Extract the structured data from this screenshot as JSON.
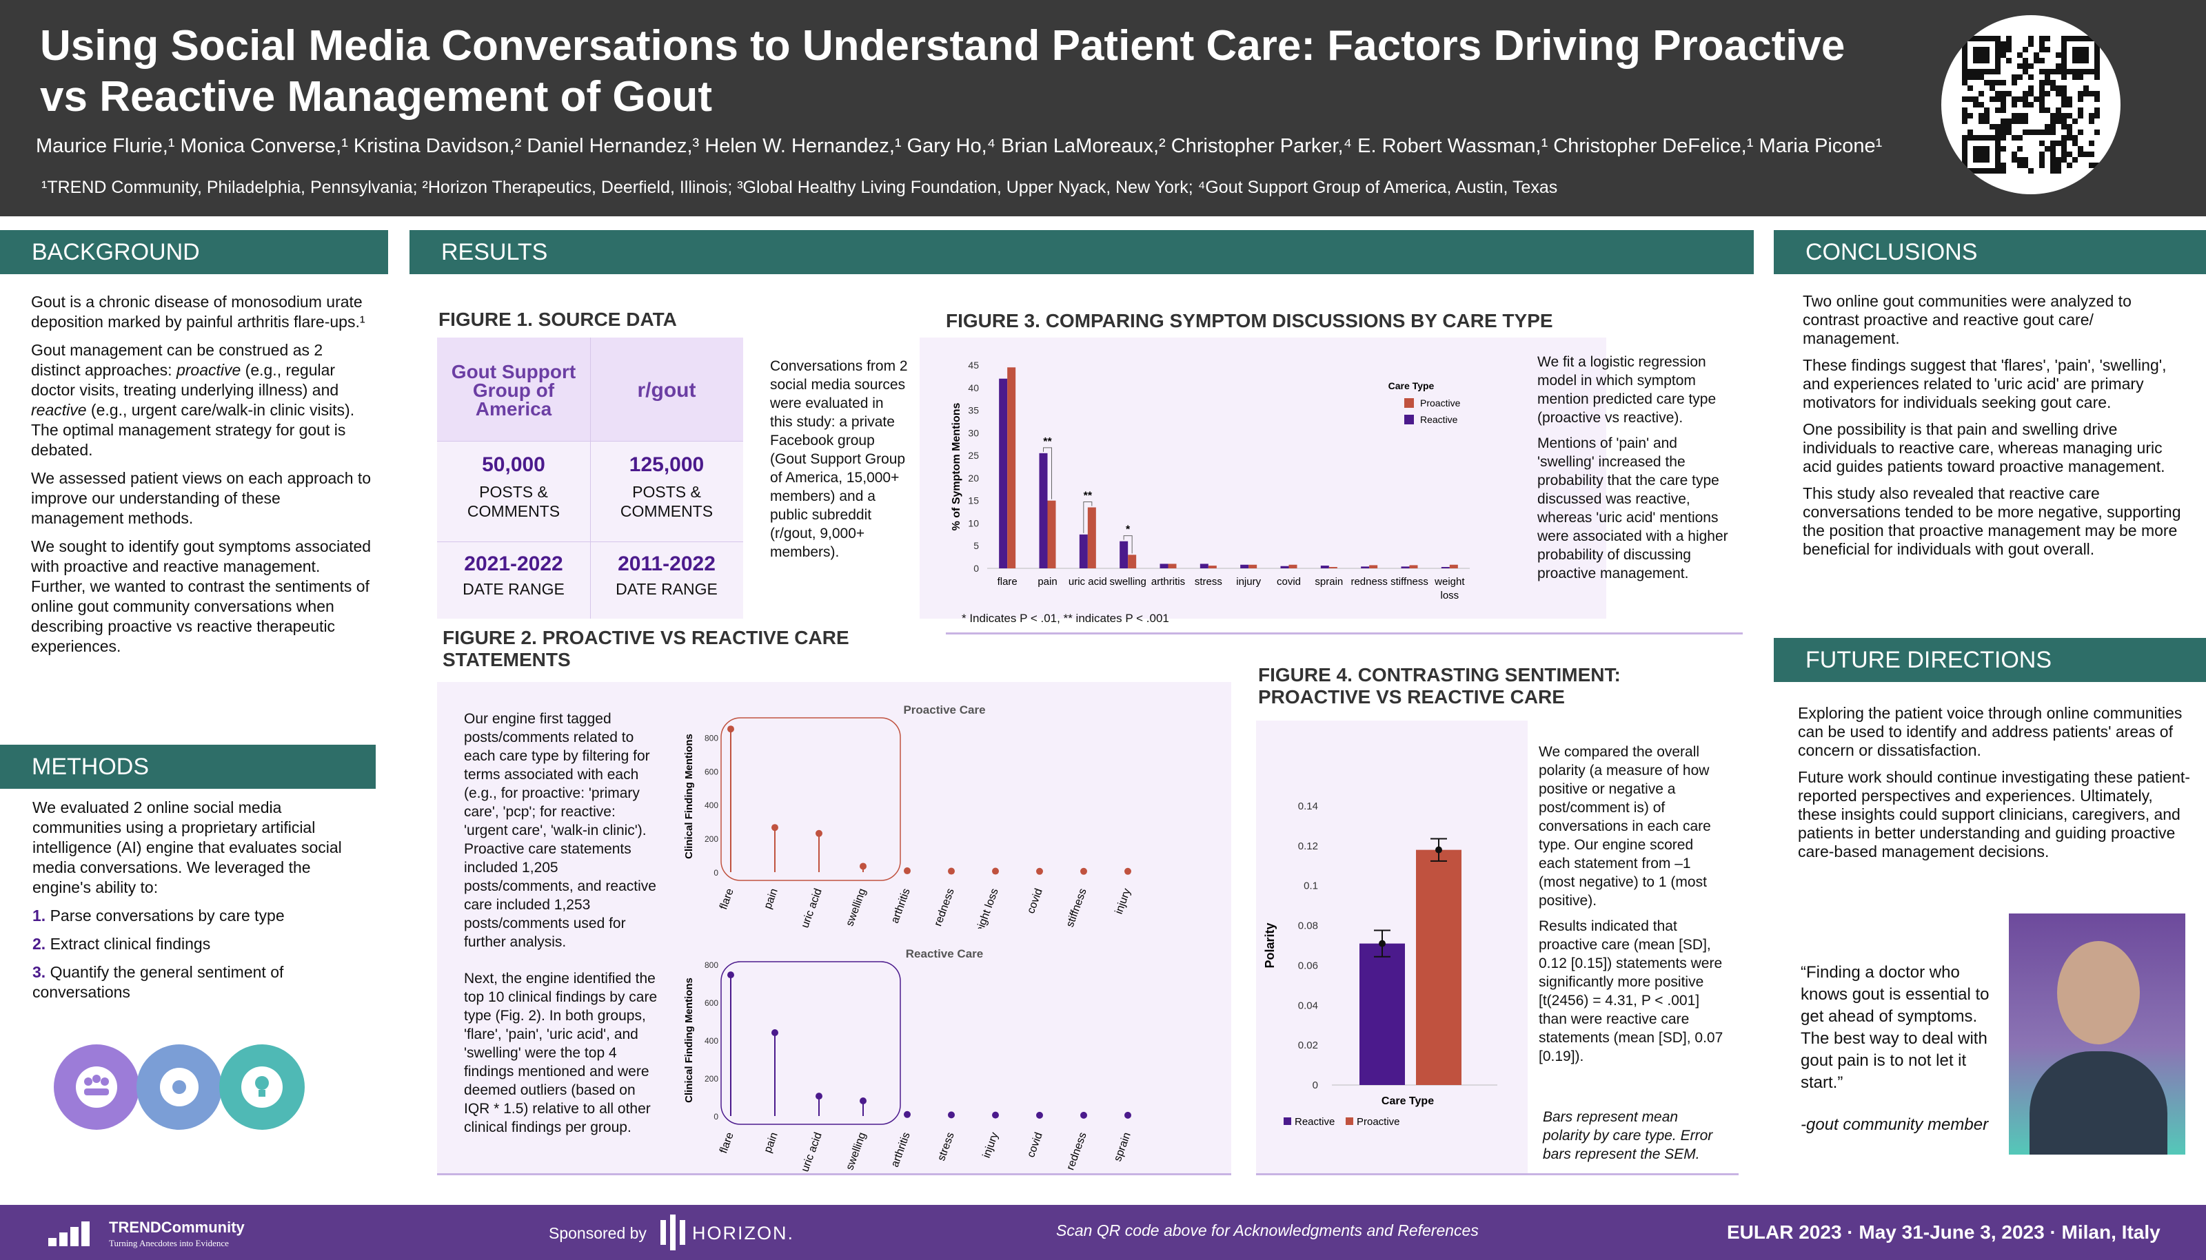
{
  "header": {
    "title_line1": "Using Social Media Conversations to Understand Patient Care: Factors Driving Proactive",
    "title_line2": "vs Reactive Management of Gout",
    "authors": "Maurice Flurie,¹ Monica Converse,¹ Kristina Davidson,² Daniel Hernandez,³ Helen W. Hernandez,¹ Gary Ho,⁴ Brian LaMoreaux,² Christopher Parker,⁴ E. Robert Wassman,¹ Christopher DeFelice,¹ Maria Picone¹",
    "affiliations": "¹TREND Community, Philadelphia, Pennsylvania; ²Horizon Therapeutics, Deerfield, Illinois; ³Global Healthy Living Foundation, Upper Nyack, New York; ⁴Gout Support Group of America, Austin, Texas"
  },
  "background": {
    "heading": "BACKGROUND",
    "p1": "Gout is a chronic disease of monosodium urate deposition marked by painful arthritis flare-ups.¹",
    "p2a": "Gout management can be construed as 2 distinct approaches: ",
    "p2b": "proactive",
    "p2c": " (e.g., regular doctor visits, treating underlying illness) and ",
    "p2d": "reactive",
    "p2e": " (e.g., urgent care/walk-in clinic visits). The optimal management strategy for gout is debated.",
    "p3": "We assessed patient views on each approach to improve our understanding of these management methods.",
    "p4": "We sought to identify gout symptoms associated with proactive and reactive management. Further, we wanted to contrast the sentiments of online gout community conversations when describing proactive vs reactive therapeutic experiences."
  },
  "methods": {
    "heading": "METHODS",
    "intro": "We evaluated 2 online social media communities using a proprietary artificial intelligence (AI) engine that evaluates social media conversations. We leveraged the engine's ability to:",
    "items": [
      {
        "num": "1.",
        "text": "Parse conversations by care type"
      },
      {
        "num": "2.",
        "text": "Extract clinical findings"
      },
      {
        "num": "3.",
        "text": "Quantify the general sentiment of conversations"
      }
    ]
  },
  "results": {
    "heading": "RESULTS",
    "fig1": {
      "title": "FIGURE 1. SOURCE DATA",
      "col1": "Gout Support Group of America",
      "col2": "r/gout",
      "posts1": "50,000",
      "posts2": "125,000",
      "posts_label": "POSTS & COMMENTS",
      "range1": "2021-2022",
      "range2": "2011-2022",
      "range_label": "DATE RANGE",
      "text": "Conversations from 2 social media sources were evaluated in this study: a private Facebook group (Gout Support Group of America, 15,000+ members) and a public subreddit (r/gout, 9,000+ members)."
    },
    "fig2": {
      "title": "FIGURE 2. PROACTIVE VS REACTIVE CARE STATEMENTS",
      "p1": "Our engine first tagged posts/comments related to each care type by filtering for terms associated with each (e.g., for proactive: 'primary care', 'pcp'; for reactive: 'urgent care', 'walk-in clinic'). Proactive care statements included 1,205 posts/comments, and reactive care included 1,253 posts/comments used for further analysis.",
      "p2": "Next, the engine identified the top 10 clinical findings by care type (Fig. 2). In both groups, 'flare', 'pain', 'uric acid', and 'swelling' were the top 4 findings mentioned and were deemed outliers (based on IQR * 1.5) relative to all other clinical findings per group."
    },
    "fig3": {
      "title": "FIGURE 3. COMPARING SYMPTOM DISCUSSIONS BY CARE TYPE",
      "footnote": "* Indicates P < .01, ** indicates P < .001",
      "p1": "We fit a logistic regression model in which symptom mention predicted care type (proactive vs reactive).",
      "p2": "Mentions of 'pain' and 'swelling' increased the probability that the care type discussed was reactive, whereas 'uric acid' mentions were associated with a higher probability of discussing proactive management."
    },
    "fig4": {
      "title_line1": "FIGURE 4. CONTRASTING SENTIMENT:",
      "title_line2": "PROACTIVE VS REACTIVE CARE",
      "p1": "We compared the overall polarity (a measure of how positive or negative a post/comment is) of conversations in each care type. Our engine scored each statement from –1 (most negative) to 1 (most positive).",
      "p2": "Results indicated that proactive care (mean [SD], 0.12 [0.15]) statements were significantly more positive [t(2456) = 4.31, P < .001] than were reactive care statements (mean [SD], 0.07 [0.19]).",
      "note": "Bars represent mean polarity by care type. Error bars represent the SEM."
    }
  },
  "conclusions": {
    "heading": "CONCLUSIONS",
    "p1": "Two online gout communities were analyzed to contrast proactive and reactive gout care/ management.",
    "p2": "These findings suggest that 'flares', 'pain', 'swelling', and experiences related to 'uric acid' are primary motivators for individuals seeking gout care.",
    "p3": "One possibility is that pain and swelling drive individuals to reactive care, whereas managing uric acid guides patients toward proactive management.",
    "p4": "This study also revealed that reactive care conversations tended to be more negative, supporting the position that proactive management may be more beneficial for individuals with gout overall."
  },
  "future": {
    "heading": "FUTURE DIRECTIONS",
    "p1": "Exploring the patient voice through online communities can be used to identify and address patients' areas of concern or dissatisfaction.",
    "p2": "Future work should continue investigating these patient-reported perspectives and experiences. Ultimately, these insights could support clinicians, caregivers, and patients in better understanding and guiding proactive care-based management decisions.",
    "quote": "“Finding a doctor who knows gout is essential to get ahead of symptoms. The best way to deal with gout pain is to not let it start.”",
    "attribution": "-gout community member"
  },
  "footer": {
    "logo": "TRENDCommunity",
    "tagline": "Turning Anecdotes into Evidence",
    "sponsored": "Sponsored by",
    "sponsor": "HORIZON.",
    "qr_note": "Scan QR code above for Acknowledgments and References",
    "meeting": "EULAR 2023 · May 31-June 3, 2023 · Milan, Italy"
  },
  "colors": {
    "teal": "#2e6e68",
    "purple": "#4b1a8c",
    "red": "#c0523f",
    "panel": "#f6f0fb"
  },
  "chart_data": [
    {
      "type": "bar",
      "id": "fig3",
      "ylabel": "% of Symptom Mentions",
      "ylim": [
        0,
        45
      ],
      "yticks": [
        0,
        5,
        10,
        15,
        20,
        25,
        30,
        35,
        40,
        45
      ],
      "legend_title": "Care Type",
      "legend_position": "top-right",
      "categories": [
        "flare",
        "pain",
        "uric acid",
        "swelling",
        "arthritis",
        "stress",
        "injury",
        "covid",
        "sprain",
        "redness",
        "stiffness",
        "weight loss"
      ],
      "series": [
        {
          "name": "Reactive",
          "color": "#4b1a8c",
          "values": [
            42,
            25.5,
            7.5,
            6,
            1,
            1,
            0.8,
            0.5,
            0.6,
            0.4,
            0.4,
            0.3
          ]
        },
        {
          "name": "Proactive",
          "color": "#c0523f",
          "values": [
            44.5,
            15,
            13.5,
            3,
            1,
            0.6,
            0.8,
            0.8,
            0.3,
            0.7,
            0.7,
            0.8
          ]
        }
      ],
      "significance": {
        "pain": "**",
        "uric acid": "**",
        "swelling": "*"
      }
    },
    {
      "type": "lollipop",
      "id": "fig2-proactive",
      "title": "Proactive Care",
      "ylabel": "Clinical Finding Mentions",
      "ylim": [
        0,
        900
      ],
      "yticks": [
        0,
        200,
        400,
        600,
        800
      ],
      "color": "#c0523f",
      "categories": [
        "flare",
        "pain",
        "uric acid",
        "swelling",
        "arthritis",
        "redness",
        "weight loss",
        "covid",
        "stiffness",
        "injury"
      ],
      "values": [
        850,
        265,
        230,
        35,
        8,
        6,
        6,
        5,
        5,
        5
      ]
    },
    {
      "type": "lollipop",
      "id": "fig2-reactive",
      "title": "Reactive Care",
      "ylabel": "Clinical Finding Mentions",
      "ylim": [
        0,
        800
      ],
      "yticks": [
        0,
        200,
        400,
        600,
        800
      ],
      "color": "#4b1a8c",
      "categories": [
        "flare",
        "pain",
        "uric acid",
        "swelling",
        "arthritis",
        "stress",
        "injury",
        "covid",
        "redness",
        "sprain"
      ],
      "values": [
        745,
        440,
        105,
        80,
        8,
        6,
        5,
        4,
        4,
        4
      ]
    },
    {
      "type": "bar",
      "id": "fig4",
      "xlabel": "Care Type",
      "ylabel": "Polarity",
      "ylim": [
        0,
        0.14
      ],
      "yticks": [
        "0",
        "0.02",
        "0.04",
        "0.06",
        "0.08",
        "0.1",
        "0.12",
        "0.14"
      ],
      "categories": [
        "Reactive",
        "Proactive"
      ],
      "values": [
        0.071,
        0.118
      ],
      "sem": [
        0.0066,
        0.0056
      ],
      "colors": [
        "#4b1a8c",
        "#c0523f"
      ]
    }
  ]
}
